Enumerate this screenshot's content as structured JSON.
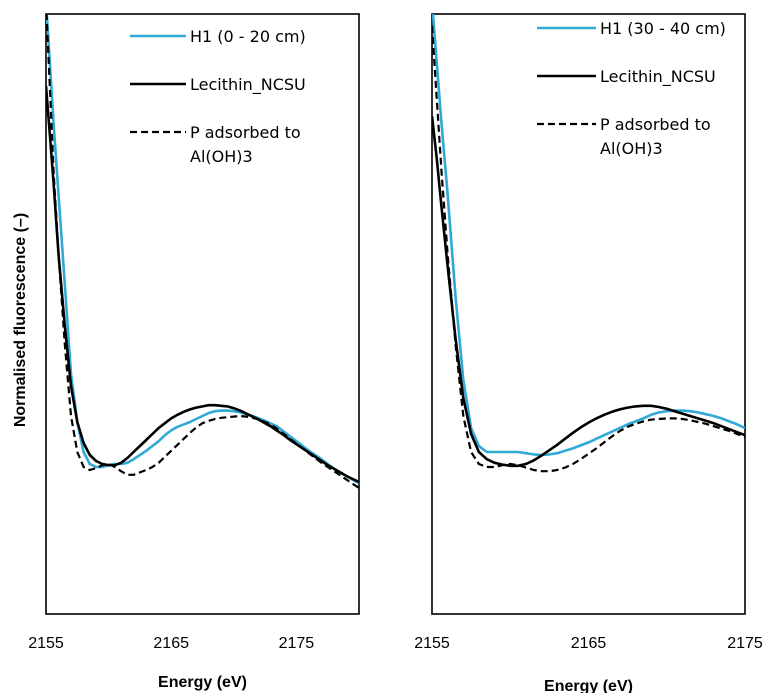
{
  "ylabel": "Normalised fluorescence (–)",
  "chart_data": [
    {
      "type": "line",
      "xlabel": "Energy (eV)",
      "xlim": [
        2155,
        2180
      ],
      "ylim": [
        0,
        1
      ],
      "xticks": [
        "2155",
        "2165",
        "2175"
      ],
      "grid": false,
      "legend_position": "top-right",
      "series": [
        {
          "name": "H1 (0 - 20 cm)",
          "color": "#31a9d6",
          "dash": "solid",
          "legend_lines": [
            "H1 (0 - 20 cm)"
          ],
          "x": [
            2155,
            2155.3,
            2155.6,
            2156,
            2156.5,
            2157,
            2157.5,
            2158,
            2158.5,
            2159,
            2159.5,
            2160,
            2160.5,
            2161,
            2161.5,
            2162,
            2162.5,
            2163,
            2163.5,
            2164,
            2164.5,
            2165,
            2165.5,
            2166,
            2166.5,
            2167,
            2167.5,
            2168,
            2168.5,
            2169,
            2169.5,
            2170,
            2170.5,
            2171,
            2171.5,
            2172,
            2172.5,
            2173,
            2173.5,
            2174,
            2174.5,
            2175,
            2175.5,
            2176,
            2176.5,
            2177,
            2177.5,
            2178,
            2178.5,
            2179,
            2179.5,
            2180
          ],
          "y": [
            1.02,
            0.92,
            0.82,
            0.7,
            0.55,
            0.4,
            0.32,
            0.27,
            0.25,
            0.245,
            0.245,
            0.248,
            0.25,
            0.25,
            0.252,
            0.258,
            0.265,
            0.272,
            0.28,
            0.288,
            0.298,
            0.306,
            0.312,
            0.316,
            0.32,
            0.325,
            0.33,
            0.335,
            0.338,
            0.339,
            0.339,
            0.338,
            0.336,
            0.333,
            0.33,
            0.326,
            0.322,
            0.317,
            0.312,
            0.304,
            0.296,
            0.288,
            0.28,
            0.272,
            0.265,
            0.258,
            0.25,
            0.242,
            0.236,
            0.23,
            0.224,
            0.218
          ]
        },
        {
          "name": "Lecithin_NCSU",
          "color": "#000000",
          "dash": "solid",
          "legend_lines": [
            "Lecithin_NCSU"
          ],
          "x": [
            2155,
            2155.3,
            2155.6,
            2156,
            2156.5,
            2157,
            2157.5,
            2158,
            2158.5,
            2159,
            2159.5,
            2160,
            2160.5,
            2161,
            2161.5,
            2162,
            2162.5,
            2163,
            2163.5,
            2164,
            2164.5,
            2165,
            2165.5,
            2166,
            2166.5,
            2167,
            2167.5,
            2168,
            2168.5,
            2169,
            2169.5,
            2170,
            2170.5,
            2171,
            2171.5,
            2172,
            2172.5,
            2173,
            2173.5,
            2174,
            2174.5,
            2175,
            2175.5,
            2176,
            2176.5,
            2177,
            2177.5,
            2178,
            2178.5,
            2179,
            2179.5,
            2180
          ],
          "y": [
            0.88,
            0.8,
            0.72,
            0.6,
            0.48,
            0.38,
            0.32,
            0.285,
            0.265,
            0.255,
            0.25,
            0.248,
            0.248,
            0.252,
            0.26,
            0.27,
            0.28,
            0.29,
            0.3,
            0.31,
            0.318,
            0.326,
            0.332,
            0.337,
            0.341,
            0.344,
            0.346,
            0.348,
            0.348,
            0.347,
            0.346,
            0.343,
            0.339,
            0.334,
            0.329,
            0.324,
            0.318,
            0.312,
            0.305,
            0.298,
            0.29,
            0.283,
            0.276,
            0.269,
            0.262,
            0.255,
            0.248,
            0.242,
            0.236,
            0.23,
            0.225,
            0.22
          ]
        },
        {
          "name": "P adsorbed to Al(OH)3",
          "color": "#000000",
          "dash": "dashed",
          "legend_lines": [
            "P adsorbed to",
            "Al(OH)3"
          ],
          "x": [
            2155,
            2155.3,
            2155.6,
            2156,
            2156.5,
            2157,
            2157.5,
            2158,
            2158.5,
            2159,
            2159.5,
            2160,
            2160.5,
            2161,
            2161.5,
            2162,
            2162.5,
            2163,
            2163.5,
            2164,
            2164.5,
            2165,
            2165.5,
            2166,
            2166.5,
            2167,
            2167.5,
            2168,
            2168.5,
            2169,
            2169.5,
            2170,
            2170.5,
            2171,
            2171.5,
            2172,
            2172.5,
            2173,
            2173.5,
            2174,
            2174.5,
            2175,
            2175.5,
            2176,
            2176.5,
            2177,
            2177.5,
            2178,
            2178.5,
            2179,
            2179.5,
            2180
          ],
          "y": [
            1.02,
            0.88,
            0.74,
            0.6,
            0.45,
            0.33,
            0.27,
            0.245,
            0.24,
            0.243,
            0.248,
            0.25,
            0.245,
            0.238,
            0.232,
            0.232,
            0.236,
            0.24,
            0.245,
            0.252,
            0.262,
            0.272,
            0.282,
            0.292,
            0.302,
            0.311,
            0.318,
            0.322,
            0.325,
            0.327,
            0.328,
            0.329,
            0.33,
            0.329,
            0.327,
            0.324,
            0.32,
            0.315,
            0.308,
            0.3,
            0.292,
            0.284,
            0.276,
            0.268,
            0.26,
            0.252,
            0.245,
            0.238,
            0.231,
            0.224,
            0.217,
            0.21
          ]
        }
      ]
    },
    {
      "type": "line",
      "xlabel": "Energy (eV)",
      "xlim": [
        2155,
        2175
      ],
      "ylim": [
        0,
        1
      ],
      "xticks": [
        "2155",
        "2165",
        "2175"
      ],
      "grid": false,
      "legend_position": "top-right",
      "series": [
        {
          "name": "H1 (30 - 40 cm)",
          "color": "#31a9d6",
          "dash": "solid",
          "legend_lines": [
            "H1 (30 - 40 cm)"
          ],
          "x": [
            2155,
            2155.3,
            2155.6,
            2156,
            2156.5,
            2157,
            2157.5,
            2158,
            2158.5,
            2159,
            2159.5,
            2160,
            2160.5,
            2161,
            2161.5,
            2162,
            2162.5,
            2163,
            2163.5,
            2164,
            2164.5,
            2165,
            2165.5,
            2166,
            2166.5,
            2167,
            2167.5,
            2168,
            2168.5,
            2169,
            2169.5,
            2170,
            2170.5,
            2171,
            2171.5,
            2172,
            2172.5,
            2173,
            2173.5,
            2174,
            2174.5,
            2175
          ],
          "y": [
            1.02,
            0.92,
            0.82,
            0.7,
            0.53,
            0.39,
            0.31,
            0.28,
            0.27,
            0.27,
            0.27,
            0.27,
            0.27,
            0.268,
            0.266,
            0.265,
            0.266,
            0.268,
            0.272,
            0.276,
            0.281,
            0.286,
            0.292,
            0.298,
            0.304,
            0.31,
            0.316,
            0.321,
            0.326,
            0.332,
            0.336,
            0.338,
            0.339,
            0.339,
            0.338,
            0.336,
            0.333,
            0.33,
            0.326,
            0.321,
            0.316,
            0.31
          ]
        },
        {
          "name": "Lecithin_NCSU",
          "color": "#000000",
          "dash": "solid",
          "legend_lines": [
            "Lecithin_NCSU"
          ],
          "x": [
            2155,
            2155.3,
            2155.6,
            2156,
            2156.5,
            2157,
            2157.5,
            2158,
            2158.5,
            2159,
            2159.5,
            2160,
            2160.5,
            2161,
            2161.5,
            2162,
            2162.5,
            2163,
            2163.5,
            2164,
            2164.5,
            2165,
            2165.5,
            2166,
            2166.5,
            2167,
            2167.5,
            2168,
            2168.5,
            2169,
            2169.5,
            2170,
            2170.5,
            2171,
            2171.5,
            2172,
            2172.5,
            2173,
            2173.5,
            2174,
            2174.5,
            2175
          ],
          "y": [
            0.83,
            0.76,
            0.68,
            0.58,
            0.46,
            0.36,
            0.3,
            0.27,
            0.258,
            0.252,
            0.249,
            0.247,
            0.247,
            0.25,
            0.256,
            0.264,
            0.273,
            0.282,
            0.292,
            0.302,
            0.311,
            0.319,
            0.326,
            0.332,
            0.337,
            0.341,
            0.344,
            0.346,
            0.347,
            0.347,
            0.345,
            0.342,
            0.338,
            0.334,
            0.33,
            0.326,
            0.322,
            0.318,
            0.313,
            0.308,
            0.303,
            0.298
          ]
        },
        {
          "name": "P adsorbed to Al(OH)3",
          "color": "#000000",
          "dash": "dashed",
          "legend_lines": [
            "P adsorbed to",
            "Al(OH)3"
          ],
          "x": [
            2155,
            2155.3,
            2155.6,
            2156,
            2156.5,
            2157,
            2157.5,
            2158,
            2158.5,
            2159,
            2159.5,
            2160,
            2160.5,
            2161,
            2161.5,
            2162,
            2162.5,
            2163,
            2163.5,
            2164,
            2164.5,
            2165,
            2165.5,
            2166,
            2166.5,
            2167,
            2167.5,
            2168,
            2168.5,
            2169,
            2169.5,
            2170,
            2170.5,
            2171,
            2171.5,
            2172,
            2172.5,
            2173,
            2173.5,
            2174,
            2174.5,
            2175
          ],
          "y": [
            0.98,
            0.86,
            0.74,
            0.6,
            0.45,
            0.33,
            0.27,
            0.25,
            0.245,
            0.245,
            0.248,
            0.25,
            0.248,
            0.244,
            0.24,
            0.238,
            0.238,
            0.24,
            0.244,
            0.25,
            0.258,
            0.267,
            0.276,
            0.286,
            0.296,
            0.305,
            0.312,
            0.317,
            0.321,
            0.324,
            0.325,
            0.326,
            0.326,
            0.325,
            0.323,
            0.32,
            0.317,
            0.313,
            0.309,
            0.305,
            0.3,
            0.295
          ]
        }
      ]
    }
  ]
}
